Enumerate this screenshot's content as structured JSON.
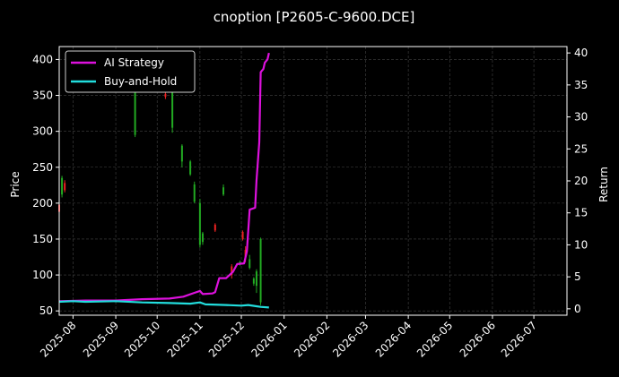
{
  "chart_data": {
    "type": "line",
    "title": "cnoption [P2605-C-9600.DCE]",
    "ylabel_left": "Price",
    "ylabel_right": "Return",
    "x_ticks": [
      "2025-08",
      "2025-09",
      "2025-10",
      "2025-11",
      "2025-12",
      "2026-01",
      "2026-02",
      "2026-03",
      "2026-04",
      "2026-05",
      "2026-06",
      "2026-07"
    ],
    "xlim": [
      "2025-07-22",
      "2026-07-25"
    ],
    "y_left": {
      "ylim": [
        44,
        418
      ],
      "ticks": [
        50,
        100,
        150,
        200,
        250,
        300,
        350,
        400
      ]
    },
    "y_right": {
      "ylim": [
        -1,
        41
      ],
      "ticks": [
        0,
        5,
        10,
        15,
        20,
        25,
        30,
        35,
        40
      ]
    },
    "grid": true,
    "legend": {
      "position": "top-left"
    },
    "colors": {
      "background": "#000000",
      "up": "#22aa22",
      "down": "#ee2222",
      "grid": "#444444",
      "axis": "#ffffff"
    },
    "series": [
      {
        "name": "AI Strategy",
        "color": "#dd11dd",
        "axis": "right",
        "points": [
          [
            "2025-07-22",
            1.2
          ],
          [
            "2025-08-10",
            1.3
          ],
          [
            "2025-09-01",
            1.3
          ],
          [
            "2025-09-20",
            1.5
          ],
          [
            "2025-10-10",
            1.6
          ],
          [
            "2025-10-20",
            1.9
          ],
          [
            "2025-10-28",
            2.5
          ],
          [
            "2025-11-01",
            2.8
          ],
          [
            "2025-11-03",
            2.3
          ],
          [
            "2025-11-10",
            2.4
          ],
          [
            "2025-11-12",
            2.6
          ],
          [
            "2025-11-15",
            4.8
          ],
          [
            "2025-11-20",
            4.8
          ],
          [
            "2025-11-25",
            5.8
          ],
          [
            "2025-11-28",
            7.0
          ],
          [
            "2025-12-03",
            7.1
          ],
          [
            "2025-12-05",
            9.0
          ],
          [
            "2025-12-07",
            15.5
          ],
          [
            "2025-12-11",
            15.8
          ],
          [
            "2025-12-12",
            20.0
          ],
          [
            "2025-12-14",
            26.0
          ],
          [
            "2025-12-15",
            37.0
          ],
          [
            "2025-12-17",
            37.5
          ],
          [
            "2025-12-18",
            38.5
          ],
          [
            "2025-12-20",
            39.0
          ],
          [
            "2025-12-21",
            40.0
          ]
        ]
      },
      {
        "name": "Buy-and-Hold",
        "color": "#22dddd",
        "axis": "right",
        "points": [
          [
            "2025-07-22",
            1.1
          ],
          [
            "2025-08-01",
            1.2
          ],
          [
            "2025-08-10",
            1.1
          ],
          [
            "2025-09-01",
            1.2
          ],
          [
            "2025-09-20",
            1.0
          ],
          [
            "2025-10-10",
            0.9
          ],
          [
            "2025-10-25",
            0.8
          ],
          [
            "2025-11-01",
            1.0
          ],
          [
            "2025-11-05",
            0.7
          ],
          [
            "2025-11-20",
            0.6
          ],
          [
            "2025-12-01",
            0.5
          ],
          [
            "2025-12-06",
            0.6
          ],
          [
            "2025-12-12",
            0.4
          ],
          [
            "2025-12-15",
            0.3
          ],
          [
            "2025-12-21",
            0.2
          ]
        ]
      }
    ],
    "candles": [
      {
        "date": "2025-07-22",
        "open": 198,
        "close": 188,
        "high": 232,
        "low": 183,
        "dir": "down"
      },
      {
        "date": "2025-07-24",
        "open": 235,
        "close": 212,
        "high": 238,
        "low": 208,
        "dir": "up"
      },
      {
        "date": "2025-07-26",
        "open": 228,
        "close": 218,
        "high": 232,
        "low": 215,
        "dir": "down"
      },
      {
        "date": "2025-09-15",
        "open": 365,
        "close": 295,
        "high": 370,
        "low": 292,
        "dir": "up"
      },
      {
        "date": "2025-10-07",
        "open": 352,
        "close": 348,
        "high": 355,
        "low": 345,
        "dir": "down"
      },
      {
        "date": "2025-10-12",
        "open": 390,
        "close": 305,
        "high": 395,
        "low": 298,
        "dir": "up"
      },
      {
        "date": "2025-10-19",
        "open": 280,
        "close": 258,
        "high": 282,
        "low": 250,
        "dir": "up"
      },
      {
        "date": "2025-10-25",
        "open": 258,
        "close": 240,
        "high": 260,
        "low": 238,
        "dir": "up"
      },
      {
        "date": "2025-10-28",
        "open": 226,
        "close": 202,
        "high": 230,
        "low": 200,
        "dir": "up"
      },
      {
        "date": "2025-11-01",
        "open": 200,
        "close": 142,
        "high": 206,
        "low": 138,
        "dir": "up"
      },
      {
        "date": "2025-11-03",
        "open": 158,
        "close": 146,
        "high": 160,
        "low": 142,
        "dir": "up"
      },
      {
        "date": "2025-11-12",
        "open": 170,
        "close": 162,
        "high": 172,
        "low": 160,
        "dir": "down"
      },
      {
        "date": "2025-11-18",
        "open": 222,
        "close": 212,
        "high": 226,
        "low": 210,
        "dir": "up"
      },
      {
        "date": "2025-11-24",
        "open": 112,
        "close": 100,
        "high": 115,
        "low": 95,
        "dir": "down"
      },
      {
        "date": "2025-11-30",
        "open": 118,
        "close": 115,
        "high": 120,
        "low": 113,
        "dir": "up"
      },
      {
        "date": "2025-12-02",
        "open": 160,
        "close": 150,
        "high": 162,
        "low": 148,
        "dir": "down"
      },
      {
        "date": "2025-12-04",
        "open": 135,
        "close": 125,
        "high": 140,
        "low": 118,
        "dir": "down"
      },
      {
        "date": "2025-12-07",
        "open": 122,
        "close": 110,
        "high": 128,
        "low": 108,
        "dir": "up"
      },
      {
        "date": "2025-12-10",
        "open": 95,
        "close": 88,
        "high": 97,
        "low": 85,
        "dir": "up"
      },
      {
        "date": "2025-12-12",
        "open": 105,
        "close": 85,
        "high": 108,
        "low": 75,
        "dir": "up"
      },
      {
        "date": "2025-12-15",
        "open": 150,
        "close": 62,
        "high": 152,
        "low": 58,
        "dir": "up"
      }
    ]
  }
}
